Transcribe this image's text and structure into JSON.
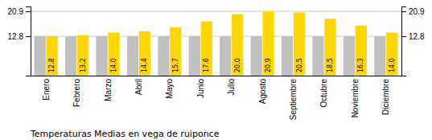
{
  "chart_data": {
    "type": "bar",
    "title": "Temperaturas Medias en vega de ruiponce",
    "categories": [
      "Enero",
      "Febrero",
      "Marzo",
      "Abril",
      "Mayo",
      "Junio",
      "Julio",
      "Agosto",
      "Septiembre",
      "Octubre",
      "Noviembre",
      "Diciembre"
    ],
    "series": [
      {
        "color": "#C0C0C0",
        "values": [
          12.8,
          12.8,
          12.8,
          12.8,
          12.8,
          12.8,
          12.8,
          12.8,
          12.8,
          12.8,
          12.8,
          12.8
        ]
      },
      {
        "color": "#FFD700",
        "values": [
          12.8,
          13.2,
          14.0,
          14.4,
          15.7,
          17.6,
          20.0,
          20.9,
          20.5,
          18.5,
          16.3,
          14.0
        ],
        "data_labels": true,
        "value_labels": [
          "12.8",
          "13.2",
          "14.0",
          "14.4",
          "15.7",
          "17.6",
          "20.0",
          "20.9",
          "20.5",
          "18.5",
          "16.3",
          "14.0"
        ]
      }
    ],
    "ylim": [
      0,
      22.5
    ],
    "yticks": [
      12.8,
      20.9
    ],
    "y2lim": [
      0,
      22.5
    ],
    "y2ticks": [
      12.8,
      20.9
    ],
    "grid": true
  }
}
